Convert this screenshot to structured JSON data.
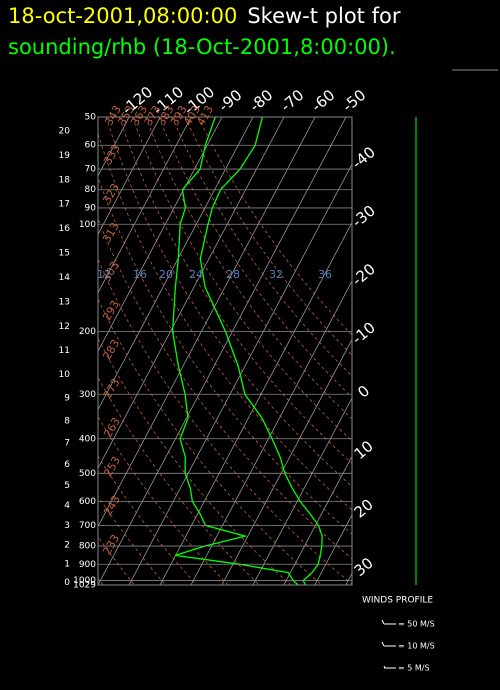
{
  "chart_data": {
    "type": "skew-t",
    "title": [
      "18-oct-2001,08:00:00",
      "Skew-t plot for",
      "sounding/rhb (18-Oct-2001,8:00:00)."
    ],
    "log_scale": true,
    "pressure": [
      1029,
      1000,
      950,
      900,
      850,
      800,
      750,
      700,
      650,
      600,
      550,
      500,
      450,
      400,
      350,
      300,
      250,
      200,
      150,
      125,
      100,
      90,
      80,
      70,
      60,
      50
    ],
    "series": [
      {
        "color": "#00ff00",
        "values": [
          17,
          15.5,
          17,
          17.5,
          16.7,
          15.6,
          14,
          11,
          6.3,
          1,
          -3.9,
          -8.8,
          -13.1,
          -18.8,
          -25.6,
          -35.2,
          -42.2,
          -52.2,
          -66.4,
          -72.8,
          -76.2,
          -77.6,
          -78.1,
          -75.3,
          -74.5,
          -77
        ]
      },
      {
        "color": "#00ff00",
        "values": [
          14.6,
          12.3,
          9.3,
          -7.7,
          -30.1,
          -22.1,
          -10.9,
          -25.5,
          -29.2,
          -33.8,
          -36.8,
          -41,
          -43.7,
          -48.5,
          -49.5,
          -54.5,
          -61.5,
          -69.3,
          -76,
          -79.9,
          -85.2,
          -86.3,
          -90.4,
          -88.2,
          -90.6,
          -92.2
        ]
      }
    ],
    "xlim": [
      -50,
      32
    ],
    "xticks": [
      -120,
      -110,
      -100,
      -90,
      -80,
      -70,
      -60,
      -50,
      -40,
      -30,
      -20,
      -10,
      0,
      10,
      20,
      30
    ],
    "ylim": [
      1029,
      50
    ],
    "yticks": [
      1029,
      1000,
      900,
      800,
      700,
      600,
      500,
      400,
      300,
      200,
      100,
      90,
      80,
      70,
      60,
      50
    ],
    "height_ticks": [
      0,
      1,
      2,
      3,
      4,
      5,
      6,
      7,
      8,
      9,
      10,
      11,
      12,
      13,
      14,
      15,
      16,
      17,
      18,
      19,
      20
    ],
    "theta_ticks": [
      223,
      233,
      243,
      253,
      263,
      273,
      283,
      293,
      303,
      313,
      323,
      333,
      343,
      353,
      363,
      373,
      383,
      393,
      403,
      413
    ],
    "mixing_ratio_labels": [
      12,
      16,
      20,
      24,
      28,
      32,
      36
    ],
    "grid": true,
    "wind_legend": {
      "title": "WINDS PROFILE",
      "items": [
        "= 50 M/S",
        "= 10 M/S",
        "= 5 M/S"
      ]
    }
  }
}
